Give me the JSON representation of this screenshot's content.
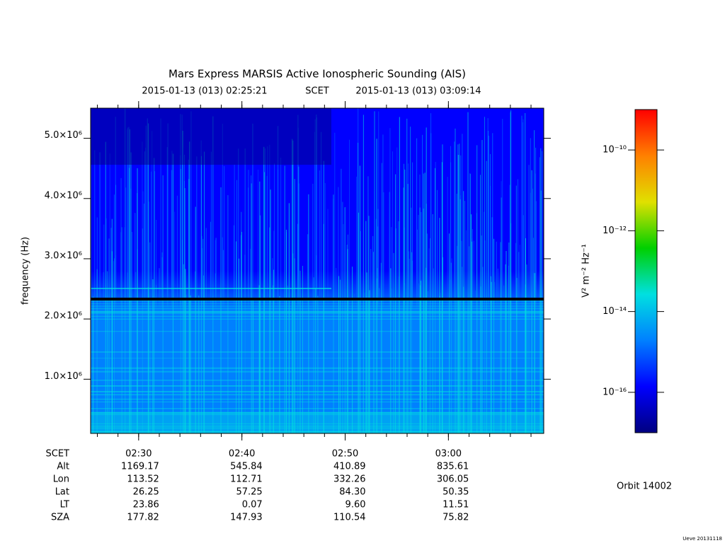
{
  "chart_data": {
    "type": "spectrogram",
    "title": "Mars Express MARSIS Active Ionospheric Sounding (AIS)",
    "start_time": "2015-01-13 (013) 02:25:21",
    "time_system": "SCET",
    "end_time": "2015-01-13 (013) 03:09:14",
    "ylabel": "frequency (Hz)",
    "ylim": [
      100000,
      5500000
    ],
    "yticks": [
      {
        "value": 1000000,
        "label": "1.0×10⁶"
      },
      {
        "value": 2000000,
        "label": "2.0×10⁶"
      },
      {
        "value": 3000000,
        "label": "3.0×10⁶"
      },
      {
        "value": 4000000,
        "label": "4.0×10⁶"
      },
      {
        "value": 5000000,
        "label": "5.0×10⁶"
      }
    ],
    "xlim": [
      145.35,
      189.233
    ],
    "xticks": [
      {
        "value": 150,
        "label": "02:30"
      },
      {
        "value": 160,
        "label": "02:40"
      },
      {
        "value": 170,
        "label": "02:50"
      },
      {
        "value": 180,
        "label": "03:00"
      }
    ],
    "ephemeris": {
      "time_label": "SCET",
      "rows": [
        {
          "name": "Alt",
          "values": [
            "1169.17",
            "545.84",
            "410.89",
            "835.61"
          ]
        },
        {
          "name": "Lon",
          "values": [
            "113.52",
            "112.71",
            "332.26",
            "306.05"
          ]
        },
        {
          "name": "Lat",
          "values": [
            "26.25",
            "57.25",
            "84.30",
            "50.35"
          ]
        },
        {
          "name": "LT",
          "values": [
            "23.86",
            "0.07",
            "9.60",
            "11.51"
          ]
        },
        {
          "name": "SZA",
          "values": [
            "177.82",
            "147.93",
            "110.54",
            "75.82"
          ]
        }
      ]
    },
    "colorbar": {
      "label": "V² m⁻² Hz⁻¹",
      "log_scale": true,
      "zlim": [
        1e-17,
        1e-09
      ],
      "zticks": [
        {
          "value": 1e-10,
          "label": "10⁻¹⁰"
        },
        {
          "value": 1e-12,
          "label": "10⁻¹²"
        },
        {
          "value": 1e-14,
          "label": "10⁻¹⁴"
        },
        {
          "value": 1e-16,
          "label": "10⁻¹⁶"
        }
      ],
      "colormap": [
        "#000080",
        "#0000ff",
        "#0080ff",
        "#00e0e0",
        "#00d000",
        "#e0e000",
        "#ff8000",
        "#ff0000"
      ]
    },
    "orbit": "Orbit 14002",
    "footer": "Ueve 20131118"
  }
}
